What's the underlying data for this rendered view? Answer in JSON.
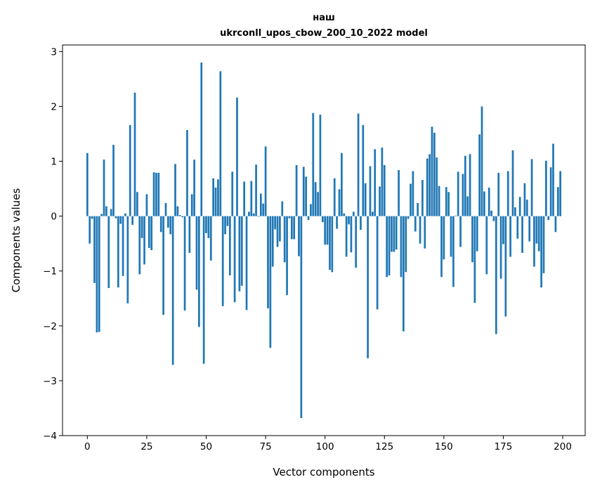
{
  "chart_data": {
    "type": "bar",
    "title_lines": [
      "наш",
      "ukrconll_upos_cbow_200_10_2022 model"
    ],
    "xlabel": "Vector components",
    "ylabel": "Components values",
    "xlim": [
      -10.44,
      209.44
    ],
    "ylim": [
      -4.0,
      3.12
    ],
    "xticks": [
      0,
      25,
      50,
      75,
      100,
      125,
      150,
      175,
      200
    ],
    "yticks": [
      -4,
      -3,
      -2,
      -1,
      0,
      1,
      2,
      3
    ],
    "grid": false,
    "bar_color": "#1f77b4",
    "x_start": 0,
    "values": [
      1.15,
      -0.5,
      -0.05,
      -1.22,
      -2.12,
      -2.11,
      0.04,
      1.03,
      0.18,
      -1.31,
      0.13,
      1.3,
      -0.04,
      -1.3,
      -0.14,
      -1.09,
      0.05,
      -1.59,
      1.66,
      -0.16,
      2.25,
      0.44,
      -1.06,
      -0.4,
      -0.88,
      0.4,
      -0.58,
      -0.62,
      0.8,
      0.79,
      0.79,
      -0.29,
      -1.8,
      0.24,
      -0.21,
      -0.33,
      -2.71,
      0.95,
      0.18,
      0.02,
      -0.02,
      -1.72,
      1.57,
      -0.67,
      0.4,
      1.03,
      -1.34,
      -2.02,
      2.8,
      -2.69,
      -0.31,
      -0.4,
      -0.81,
      0.69,
      0.52,
      0.67,
      2.64,
      -1.64,
      -0.33,
      -0.18,
      -1.08,
      0.81,
      -1.57,
      2.16,
      -1.37,
      -1.27,
      0.63,
      -1.71,
      0.08,
      0.64,
      0.05,
      0.94,
      -0.01,
      0.41,
      0.23,
      1.27,
      -1.68,
      -2.4,
      -0.92,
      -0.24,
      -0.56,
      -0.46,
      0.27,
      -0.84,
      -1.44,
      -0.04,
      -0.42,
      -0.42,
      0.93,
      -0.73,
      -3.68,
      0.9,
      0.72,
      -0.07,
      0.22,
      1.88,
      0.62,
      0.44,
      1.85,
      -0.11,
      -0.52,
      -0.52,
      -0.98,
      -1.02,
      0.69,
      -0.23,
      0.49,
      1.15,
      0.05,
      -0.74,
      -0.15,
      -0.66,
      0.08,
      -0.94,
      1.87,
      -0.25,
      1.66,
      0.6,
      -2.59,
      0.91,
      0.08,
      1.22,
      -1.7,
      0.54,
      1.25,
      0.93,
      -1.11,
      -1.08,
      -0.65,
      -0.65,
      -0.61,
      0.84,
      -1.11,
      -2.1,
      -1.02,
      -0.05,
      0.59,
      0.82,
      -0.28,
      0.24,
      -0.5,
      0.66,
      -0.59,
      1.05,
      1.13,
      1.63,
      1.52,
      1.07,
      0.55,
      -1.11,
      -0.79,
      0.53,
      0.44,
      -0.74,
      -1.29,
      0.01,
      0.81,
      -0.56,
      0.77,
      1.1,
      0.36,
      1.13,
      -0.84,
      -1.58,
      -0.64,
      1.49,
      2.0,
      0.45,
      -1.06,
      0.52,
      0.1,
      -0.09,
      -2.15,
      0.79,
      -1.14,
      -0.51,
      -1.83,
      0.82,
      -0.74,
      1.2,
      0.16,
      -0.41,
      0.35,
      -0.67,
      0.6,
      0.3,
      -0.46,
      1.04,
      -0.92,
      -0.5,
      -0.64,
      -1.3,
      -1.04,
      1.01,
      -0.07,
      0.89,
      1.32,
      -0.29,
      0.53,
      0.82
    ]
  }
}
